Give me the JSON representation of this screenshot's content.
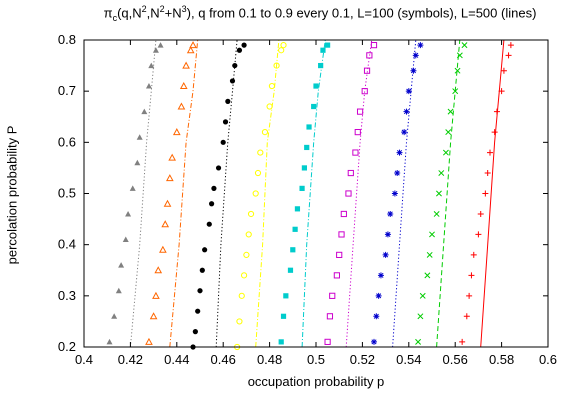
{
  "title": {
    "pi": "π",
    "c": "c",
    "rest1": "(q,N",
    "sup1": "2",
    "rest2": ",N",
    "sup2": "2",
    "rest3": "+N",
    "sup3": "3",
    "rest4": "), q from 0.1 to 0.9 every 0.1, L=100 (symbols), L=500 (lines)"
  },
  "chart_data": {
    "type": "scatter",
    "xlabel": "occupation probability p",
    "ylabel": "percolation probability P",
    "xlim": [
      0.4,
      0.6
    ],
    "ylim": [
      0.2,
      0.8
    ],
    "xticks": [
      "0.4",
      "0.42",
      "0.44",
      "0.46",
      "0.48",
      "0.5",
      "0.52",
      "0.54",
      "0.56",
      "0.58",
      "0.6"
    ],
    "yticks": [
      "0.2",
      "0.3",
      "0.4",
      "0.5",
      "0.6",
      "0.7",
      "0.8"
    ],
    "grid": false,
    "series": [
      {
        "color": "#808080",
        "marker": "triangle-filled",
        "lineStyle": "dotted",
        "line": [
          [
            0.42,
            0.2
          ],
          [
            0.424,
            0.4
          ],
          [
            0.427,
            0.6
          ],
          [
            0.429,
            0.7
          ],
          [
            0.431,
            0.8
          ]
        ],
        "values": [
          [
            0.411,
            0.21
          ],
          [
            0.413,
            0.26
          ],
          [
            0.415,
            0.31
          ],
          [
            0.416,
            0.36
          ],
          [
            0.418,
            0.41
          ],
          [
            0.419,
            0.46
          ],
          [
            0.421,
            0.51
          ],
          [
            0.423,
            0.56
          ],
          [
            0.424,
            0.61
          ],
          [
            0.426,
            0.66
          ],
          [
            0.428,
            0.71
          ],
          [
            0.429,
            0.75
          ],
          [
            0.431,
            0.78
          ],
          [
            0.433,
            0.79
          ]
        ]
      },
      {
        "color": "#ff6600",
        "marker": "triangle-open",
        "lineStyle": "dashdot",
        "line": [
          [
            0.437,
            0.2
          ],
          [
            0.441,
            0.4
          ],
          [
            0.444,
            0.6
          ],
          [
            0.447,
            0.7
          ],
          [
            0.449,
            0.8
          ]
        ],
        "values": [
          [
            0.428,
            0.21
          ],
          [
            0.43,
            0.26
          ],
          [
            0.431,
            0.3
          ],
          [
            0.432,
            0.35
          ],
          [
            0.434,
            0.39
          ],
          [
            0.435,
            0.44
          ],
          [
            0.436,
            0.48
          ],
          [
            0.437,
            0.53
          ],
          [
            0.438,
            0.57
          ],
          [
            0.44,
            0.62
          ],
          [
            0.442,
            0.67
          ],
          [
            0.443,
            0.71
          ],
          [
            0.444,
            0.75
          ],
          [
            0.446,
            0.78
          ],
          [
            0.447,
            0.79
          ]
        ]
      },
      {
        "color": "#000000",
        "marker": "circle-filled",
        "lineStyle": "dotted",
        "line": [
          [
            0.457,
            0.2
          ],
          [
            0.459,
            0.4
          ],
          [
            0.462,
            0.6
          ],
          [
            0.464,
            0.7
          ],
          [
            0.466,
            0.8
          ]
        ],
        "values": [
          [
            0.447,
            0.2
          ],
          [
            0.448,
            0.23
          ],
          [
            0.449,
            0.27
          ],
          [
            0.45,
            0.31
          ],
          [
            0.451,
            0.35
          ],
          [
            0.452,
            0.39
          ],
          [
            0.454,
            0.44
          ],
          [
            0.455,
            0.48
          ],
          [
            0.456,
            0.51
          ],
          [
            0.458,
            0.55
          ],
          [
            0.46,
            0.6
          ],
          [
            0.461,
            0.64
          ],
          [
            0.462,
            0.68
          ],
          [
            0.464,
            0.72
          ],
          [
            0.465,
            0.75
          ],
          [
            0.467,
            0.78
          ],
          [
            0.469,
            0.79
          ]
        ]
      },
      {
        "color": "#ffff00",
        "marker": "circle-open",
        "lineStyle": "dashdot",
        "line": [
          [
            0.474,
            0.2
          ],
          [
            0.477,
            0.4
          ],
          [
            0.479,
            0.6
          ],
          [
            0.482,
            0.7
          ],
          [
            0.484,
            0.8
          ]
        ],
        "values": [
          [
            0.466,
            0.2
          ],
          [
            0.467,
            0.25
          ],
          [
            0.468,
            0.3
          ],
          [
            0.469,
            0.34
          ],
          [
            0.47,
            0.38
          ],
          [
            0.471,
            0.42
          ],
          [
            0.472,
            0.46
          ],
          [
            0.474,
            0.5
          ],
          [
            0.475,
            0.54
          ],
          [
            0.476,
            0.58
          ],
          [
            0.478,
            0.62
          ],
          [
            0.48,
            0.67
          ],
          [
            0.481,
            0.71
          ],
          [
            0.483,
            0.75
          ],
          [
            0.485,
            0.78
          ],
          [
            0.486,
            0.79
          ]
        ]
      },
      {
        "color": "#00cccc",
        "marker": "square-filled",
        "lineStyle": "dashdot",
        "line": [
          [
            0.494,
            0.2
          ],
          [
            0.496,
            0.4
          ],
          [
            0.499,
            0.6
          ],
          [
            0.501,
            0.7
          ],
          [
            0.504,
            0.8
          ]
        ],
        "values": [
          [
            0.485,
            0.21
          ],
          [
            0.486,
            0.26
          ],
          [
            0.487,
            0.3
          ],
          [
            0.489,
            0.35
          ],
          [
            0.49,
            0.39
          ],
          [
            0.491,
            0.43
          ],
          [
            0.492,
            0.47
          ],
          [
            0.494,
            0.51
          ],
          [
            0.495,
            0.55
          ],
          [
            0.496,
            0.59
          ],
          [
            0.497,
            0.63
          ],
          [
            0.499,
            0.67
          ],
          [
            0.5,
            0.71
          ],
          [
            0.502,
            0.75
          ],
          [
            0.503,
            0.78
          ],
          [
            0.505,
            0.79
          ]
        ]
      },
      {
        "color": "#cc00cc",
        "marker": "square-open",
        "lineStyle": "dotted",
        "line": [
          [
            0.513,
            0.2
          ],
          [
            0.516,
            0.4
          ],
          [
            0.519,
            0.6
          ],
          [
            0.521,
            0.7
          ],
          [
            0.524,
            0.8
          ]
        ],
        "values": [
          [
            0.505,
            0.21
          ],
          [
            0.506,
            0.26
          ],
          [
            0.507,
            0.3
          ],
          [
            0.509,
            0.34
          ],
          [
            0.51,
            0.38
          ],
          [
            0.511,
            0.42
          ],
          [
            0.512,
            0.46
          ],
          [
            0.514,
            0.5
          ],
          [
            0.515,
            0.54
          ],
          [
            0.517,
            0.58
          ],
          [
            0.518,
            0.62
          ],
          [
            0.519,
            0.66
          ],
          [
            0.521,
            0.7
          ],
          [
            0.522,
            0.74
          ],
          [
            0.523,
            0.77
          ],
          [
            0.525,
            0.79
          ]
        ]
      },
      {
        "color": "#0000cc",
        "marker": "star",
        "lineStyle": "dotted",
        "line": [
          [
            0.533,
            0.2
          ],
          [
            0.536,
            0.4
          ],
          [
            0.539,
            0.6
          ],
          [
            0.541,
            0.7
          ],
          [
            0.543,
            0.8
          ]
        ],
        "values": [
          [
            0.525,
            0.21
          ],
          [
            0.526,
            0.26
          ],
          [
            0.527,
            0.3
          ],
          [
            0.528,
            0.34
          ],
          [
            0.53,
            0.38
          ],
          [
            0.531,
            0.42
          ],
          [
            0.532,
            0.46
          ],
          [
            0.534,
            0.5
          ],
          [
            0.535,
            0.54
          ],
          [
            0.536,
            0.58
          ],
          [
            0.538,
            0.62
          ],
          [
            0.539,
            0.66
          ],
          [
            0.54,
            0.7
          ],
          [
            0.542,
            0.74
          ],
          [
            0.543,
            0.77
          ],
          [
            0.545,
            0.79
          ]
        ]
      },
      {
        "color": "#00cc00",
        "marker": "cross",
        "lineStyle": "dashed",
        "line": [
          [
            0.552,
            0.2
          ],
          [
            0.555,
            0.4
          ],
          [
            0.558,
            0.6
          ],
          [
            0.56,
            0.7
          ],
          [
            0.562,
            0.8
          ]
        ],
        "values": [
          [
            0.544,
            0.21
          ],
          [
            0.545,
            0.26
          ],
          [
            0.546,
            0.3
          ],
          [
            0.548,
            0.34
          ],
          [
            0.549,
            0.38
          ],
          [
            0.55,
            0.42
          ],
          [
            0.552,
            0.46
          ],
          [
            0.553,
            0.5
          ],
          [
            0.554,
            0.54
          ],
          [
            0.556,
            0.58
          ],
          [
            0.557,
            0.62
          ],
          [
            0.558,
            0.66
          ],
          [
            0.56,
            0.7
          ],
          [
            0.561,
            0.74
          ],
          [
            0.562,
            0.77
          ],
          [
            0.564,
            0.79
          ]
        ]
      },
      {
        "color": "#ff0000",
        "marker": "plus",
        "lineStyle": "solid",
        "line": [
          [
            0.571,
            0.2
          ],
          [
            0.574,
            0.4
          ],
          [
            0.577,
            0.6
          ],
          [
            0.579,
            0.7
          ],
          [
            0.581,
            0.8
          ]
        ],
        "values": [
          [
            0.563,
            0.21
          ],
          [
            0.565,
            0.26
          ],
          [
            0.566,
            0.3
          ],
          [
            0.567,
            0.34
          ],
          [
            0.568,
            0.38
          ],
          [
            0.57,
            0.42
          ],
          [
            0.571,
            0.46
          ],
          [
            0.573,
            0.5
          ],
          [
            0.574,
            0.54
          ],
          [
            0.575,
            0.58
          ],
          [
            0.577,
            0.62
          ],
          [
            0.578,
            0.66
          ],
          [
            0.58,
            0.7
          ],
          [
            0.581,
            0.74
          ],
          [
            0.583,
            0.77
          ],
          [
            0.584,
            0.79
          ]
        ]
      }
    ]
  }
}
